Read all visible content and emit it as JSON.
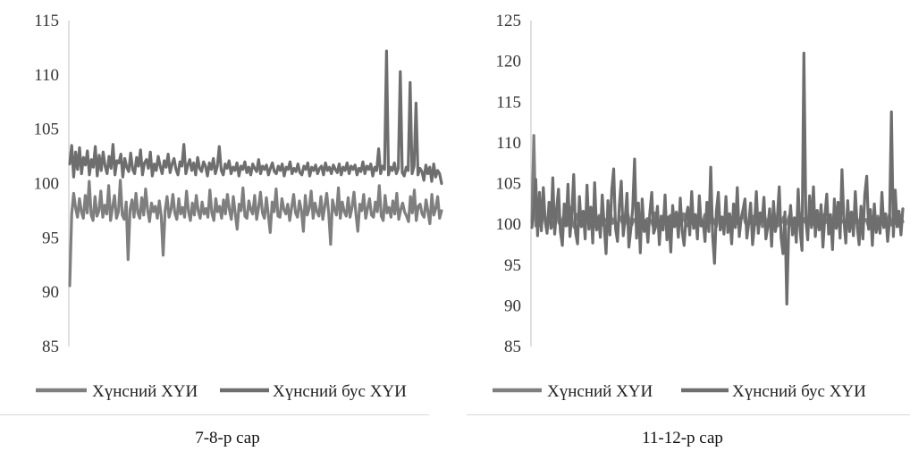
{
  "chart_data": [
    {
      "type": "line",
      "caption": "7-8-р сар",
      "ylim": [
        85,
        115
      ],
      "yticks": [
        85,
        90,
        95,
        100,
        105,
        110,
        115
      ],
      "grid": false,
      "legend_position": "bottom",
      "series": [
        {
          "name": "Хүнсний ХҮИ",
          "color": "#7f7f7f",
          "values": [
            90.6,
            97.2,
            99.1,
            97.8,
            96.9,
            98.6,
            97.4,
            96.8,
            98.9,
            97.3,
            100.2,
            97.1,
            96.6,
            98.8,
            97.0,
            97.5,
            99.3,
            96.9,
            98.0,
            97.2,
            99.8,
            96.6,
            97.8,
            98.9,
            96.8,
            97.4,
            100.3,
            97.1,
            96.7,
            98.3,
            93.0,
            97.6,
            98.5,
            96.9,
            99.1,
            97.3,
            96.8,
            98.7,
            97.1,
            99.5,
            97.6,
            96.5,
            98.2,
            97.4,
            97.9,
            96.8,
            98.4,
            97.0,
            93.4,
            97.5,
            98.8,
            96.9,
            97.6,
            99.0,
            97.3,
            96.7,
            98.6,
            97.2,
            97.8,
            96.9,
            99.3,
            97.4,
            96.6,
            98.2,
            97.1,
            98.9,
            97.5,
            96.8,
            98.3,
            97.2,
            97.7,
            96.9,
            99.4,
            97.3,
            96.6,
            98.6,
            97.4,
            97.9,
            96.8,
            98.5,
            97.2,
            99.0,
            97.6,
            96.7,
            98.8,
            97.3,
            95.8,
            98.1,
            97.5,
            99.6,
            97.0,
            96.8,
            98.4,
            97.6,
            97.2,
            98.9,
            96.7,
            97.8,
            99.2,
            97.3,
            96.8,
            98.7,
            97.1,
            95.5,
            98.3,
            97.4,
            99.5,
            97.0,
            96.9,
            98.6,
            97.6,
            97.2,
            98.1,
            96.6,
            97.8,
            99.0,
            97.3,
            96.9,
            98.4,
            97.5,
            95.6,
            98.9,
            97.1,
            97.7,
            99.3,
            96.8,
            98.2,
            97.4,
            97.0,
            98.8,
            96.7,
            97.9,
            99.1,
            97.3,
            94.4,
            98.5,
            97.6,
            97.1,
            99.6,
            96.8,
            98.3,
            97.4,
            97.0,
            98.7,
            96.9,
            97.8,
            99.2,
            97.2,
            95.6,
            98.1,
            97.5,
            99.0,
            96.8,
            97.7,
            98.6,
            97.1,
            96.9,
            98.3,
            97.4,
            99.8,
            97.0,
            96.6,
            98.9,
            97.3,
            97.8,
            96.9,
            98.4,
            97.2,
            99.1,
            96.7,
            97.6,
            98.2,
            97.4,
            97.0,
            96.5,
            98.8,
            97.3,
            99.4,
            96.6,
            97.9,
            98.1,
            97.2,
            96.9,
            98.5,
            97.4,
            96.3,
            99.0,
            97.1,
            97.7,
            98.8,
            96.8,
            97.5
          ]
        },
        {
          "name": "Хүнсний бус ХҮИ",
          "color": "#6e6e6e",
          "values": [
            101.8,
            103.5,
            100.6,
            102.9,
            101.3,
            103.3,
            100.9,
            102.4,
            101.7,
            103.0,
            100.8,
            102.2,
            101.5,
            103.4,
            100.7,
            102.6,
            101.2,
            102.9,
            101.6,
            100.9,
            102.5,
            101.4,
            103.6,
            100.8,
            102.1,
            101.9,
            102.7,
            100.6,
            102.3,
            101.5,
            101.1,
            102.8,
            101.3,
            100.9,
            102.4,
            101.6,
            103.1,
            100.8,
            101.9,
            102.2,
            101.4,
            102.9,
            100.7,
            101.8,
            101.2,
            102.5,
            101.6,
            100.9,
            102.1,
            101.5,
            102.7,
            101.0,
            101.8,
            102.3,
            101.3,
            100.8,
            102.0,
            101.6,
            103.6,
            100.9,
            101.7,
            102.2,
            101.2,
            101.9,
            100.8,
            102.4,
            101.4,
            101.1,
            102.0,
            101.6,
            100.7,
            101.9,
            101.3,
            102.3,
            100.9,
            101.6,
            103.4,
            101.2,
            100.8,
            101.8,
            101.4,
            102.1,
            100.9,
            101.5,
            101.2,
            101.9,
            100.7,
            101.6,
            101.3,
            102.0,
            101.0,
            101.5,
            100.8,
            101.8,
            101.4,
            101.1,
            102.2,
            100.9,
            101.6,
            101.3,
            101.7,
            100.8,
            101.4,
            101.9,
            101.1,
            100.9,
            101.6,
            101.2,
            101.8,
            100.7,
            101.5,
            101.3,
            102.0,
            100.9,
            101.4,
            101.1,
            101.8,
            101.0,
            100.8,
            101.6,
            101.3,
            101.9,
            100.7,
            101.5,
            101.2,
            101.7,
            100.9,
            101.4,
            101.6,
            100.8,
            101.9,
            101.2,
            101.5,
            100.9,
            101.7,
            101.3,
            101.0,
            101.8,
            100.8,
            101.5,
            101.2,
            101.9,
            100.9,
            101.6,
            101.3,
            101.7,
            100.8,
            101.4,
            101.1,
            102.0,
            100.9,
            101.6,
            101.3,
            101.8,
            100.7,
            101.5,
            101.2,
            103.2,
            100.9,
            101.6,
            101.3,
            112.2,
            100.8,
            101.5,
            101.2,
            101.9,
            100.9,
            101.4,
            110.3,
            101.0,
            100.7,
            101.5,
            101.2,
            109.3,
            100.9,
            101.6,
            107.4,
            100.8,
            101.4,
            101.1,
            100.3,
            101.7,
            100.9,
            101.5,
            100.2,
            101.8,
            100.6,
            101.2,
            100.9,
            100.0
          ]
        }
      ]
    },
    {
      "type": "line",
      "caption": "11-12-р сар",
      "ylim": [
        85,
        125
      ],
      "yticks": [
        85,
        90,
        95,
        100,
        105,
        110,
        115,
        120,
        125
      ],
      "grid": false,
      "legend_position": "bottom",
      "series": [
        {
          "name": "Хүнсний ХҮИ",
          "color": "#7f7f7f",
          "values": [
            100.2,
            110.9,
            99.8,
            101.5,
            100.1,
            99.6,
            102.8,
            100.3,
            99.9,
            101.2,
            100.5,
            99.7,
            100.8,
            101.9,
            100.2,
            99.8,
            100.6,
            101.4,
            100.1,
            99.9,
            102.1,
            100.4,
            99.6,
            100.9,
            101.3,
            100.2,
            99.8,
            100.7,
            100.1,
            101.6,
            99.9,
            100.3,
            100.8,
            99.7,
            100.5,
            101.1,
            100.2,
            99.9,
            100.6,
            100.4,
            99.8,
            101.3,
            100.1,
            100.7,
            99.9,
            100.3,
            100.9,
            100.2,
            99.7,
            100.5,
            101.2,
            100.1,
            99.9,
            100.6,
            100.3,
            99.8,
            101.0,
            100.4,
            100.1,
            99.9,
            100.7,
            100.2,
            100.5,
            99.8,
            101.4,
            100.1,
            100.3,
            99.9,
            100.8,
            100.2,
            100.6,
            99.7,
            101.1,
            100.3,
            100.0,
            100.5,
            99.9,
            100.8,
            100.2,
            101.3,
            100.1,
            99.8,
            100.6,
            100.4,
            99.9,
            101.0,
            100.2,
            100.7,
            99.8,
            100.3,
            101.2,
            100.1,
            99.9,
            100.5,
            100.8,
            100.2,
            99.7,
            101.4,
            100.3,
            100.1,
            99.9,
            100.6,
            100.4,
            101.1,
            99.8,
            100.2,
            100.9,
            100.1,
            99.9,
            100.7,
            101.3,
            100.2,
            99.8,
            100.5,
            100.3,
            101.0,
            99.9,
            100.1,
            100.8,
            100.4,
            99.7,
            101.2,
            100.2,
            100.6,
            99.9,
            100.3,
            101.5,
            100.1,
            99.8,
            100.7,
            100.2,
            100.9,
            99.9,
            100.4,
            101.1,
            100.1,
            99.8,
            100.6,
            100.3,
            99.9,
            101.3,
            100.2,
            100.7,
            99.8,
            100.5,
            101.0,
            100.1,
            99.9,
            100.8,
            100.3,
            100.4,
            99.7,
            101.2,
            100.2,
            100.6,
            99.9,
            100.1,
            100.9,
            100.4,
            99.8,
            101.4,
            100.2,
            100.5,
            99.9,
            100.7,
            100.1,
            101.1,
            99.8,
            100.3,
            100.8,
            100.2,
            99.9,
            101.3,
            100.4,
            100.6,
            99.8,
            100.2,
            100.9,
            100.1,
            99.9,
            101.0,
            100.3,
            100.5,
            99.8,
            100.7,
            100.2,
            101.2,
            99.9,
            100.4,
            100.1,
            100.8,
            99.8,
            101.1,
            100.3
          ]
        },
        {
          "name": "Хүнсний бус ХҮИ",
          "color": "#6e6e6e",
          "values": [
            99.6,
            101.8,
            105.5,
            98.6,
            103.9,
            99.2,
            104.5,
            100.4,
            98.9,
            102.7,
            99.5,
            105.7,
            98.8,
            101.9,
            104.3,
            99.1,
            97.4,
            102.5,
            99.8,
            104.9,
            98.5,
            101.2,
            106.1,
            99.0,
            97.6,
            103.4,
            99.7,
            101.6,
            98.2,
            104.8,
            99.4,
            102.1,
            97.7,
            105.1,
            99.3,
            100.8,
            98.4,
            103.6,
            99.9,
            96.4,
            102.9,
            98.7,
            104.2,
            106.8,
            99.5,
            97.9,
            102.4,
            105.3,
            98.6,
            100.7,
            103.8,
            97.2,
            99.4,
            101.9,
            108.0,
            98.3,
            102.6,
            96.5,
            103.1,
            99.1,
            100.5,
            97.8,
            101.3,
            103.9,
            98.9,
            99.6,
            102.2,
            97.5,
            101.0,
            99.3,
            103.6,
            98.1,
            100.9,
            96.6,
            102.3,
            99.7,
            101.5,
            98.4,
            103.2,
            99.2,
            97.4,
            100.8,
            102.1,
            98.7,
            104.0,
            99.5,
            101.2,
            98.2,
            103.5,
            99.8,
            100.4,
            97.9,
            102.7,
            99.1,
            107.0,
            98.6,
            95.2,
            101.6,
            103.9,
            99.3,
            100.9,
            98.8,
            103.4,
            99.0,
            101.3,
            97.6,
            102.5,
            99.6,
            104.5,
            98.5,
            100.7,
            101.8,
            103.1,
            98.3,
            100.1,
            102.6,
            97.5,
            99.9,
            104.0,
            98.9,
            101.4,
            100.3,
            103.3,
            98.2,
            99.7,
            101.9,
            97.3,
            102.8,
            99.1,
            100.6,
            104.6,
            98.4,
            96.4,
            101.5,
            90.2,
            99.4,
            102.3,
            98.7,
            100.8,
            97.8,
            104.3,
            99.2,
            96.8,
            121.0,
            100.5,
            98.1,
            103.5,
            99.6,
            104.6,
            98.5,
            101.7,
            99.3,
            102.4,
            97.2,
            100.9,
            103.7,
            98.8,
            101.2,
            96.9,
            103.1,
            99.5,
            102.7,
            98.3,
            106.7,
            100.6,
            97.7,
            102.9,
            99.1,
            101.5,
            98.6,
            104.0,
            99.8,
            97.5,
            102.2,
            98.2,
            103.6,
            105.9,
            99.4,
            101.8,
            97.4,
            102.5,
            99.0,
            100.7,
            98.9,
            103.9,
            99.6,
            101.3,
            97.9,
            100.4,
            113.8,
            98.5,
            104.2,
            99.7,
            101.6,
            98.7,
            101.9
          ]
        }
      ]
    }
  ]
}
